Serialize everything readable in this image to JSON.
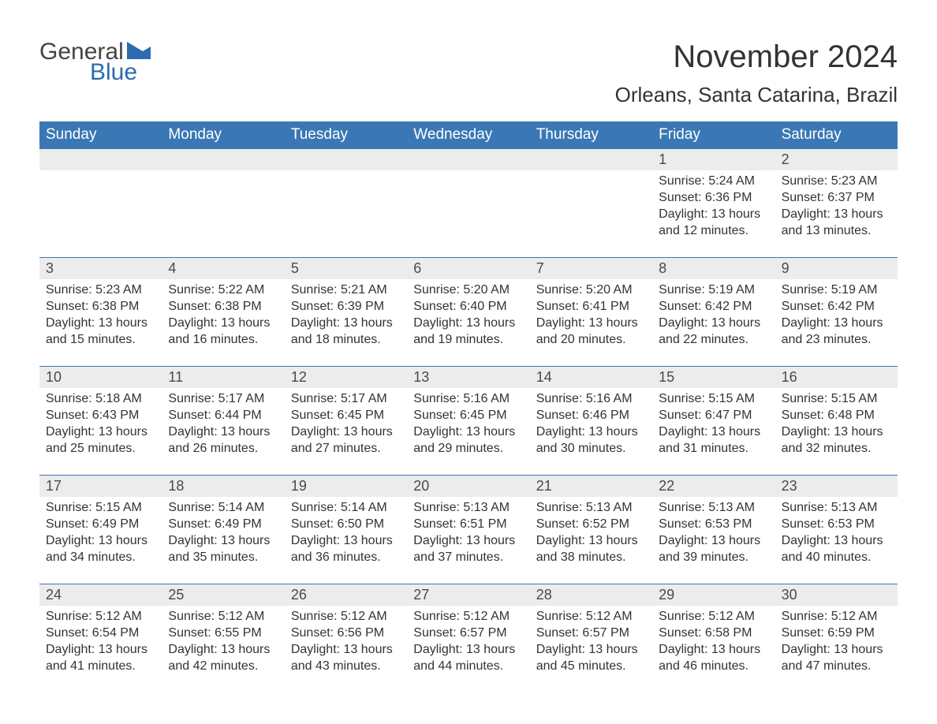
{
  "brand": {
    "word1": "General",
    "word2": "Blue",
    "color_general": "#444444",
    "color_blue": "#2b6cb0",
    "flag_color": "#2b6cb0"
  },
  "title": "November 2024",
  "location": "Orleans, Santa Catarina, Brazil",
  "header_bg": "#3a78b5",
  "header_text_color": "#ffffff",
  "row_border_color": "#3a78b5",
  "daynum_band_bg": "#ececec",
  "body_text_color": "#333333",
  "title_fontsize": 40,
  "location_fontsize": 26,
  "weekday_fontsize": 19,
  "daynum_fontsize": 18,
  "body_fontsize": 16,
  "weekdays": [
    "Sunday",
    "Monday",
    "Tuesday",
    "Wednesday",
    "Thursday",
    "Friday",
    "Saturday"
  ],
  "weeks": [
    [
      null,
      null,
      null,
      null,
      null,
      {
        "n": "1",
        "sunrise": "Sunrise: 5:24 AM",
        "sunset": "Sunset: 6:36 PM",
        "daylight": "Daylight: 13 hours and 12 minutes."
      },
      {
        "n": "2",
        "sunrise": "Sunrise: 5:23 AM",
        "sunset": "Sunset: 6:37 PM",
        "daylight": "Daylight: 13 hours and 13 minutes."
      }
    ],
    [
      {
        "n": "3",
        "sunrise": "Sunrise: 5:23 AM",
        "sunset": "Sunset: 6:38 PM",
        "daylight": "Daylight: 13 hours and 15 minutes."
      },
      {
        "n": "4",
        "sunrise": "Sunrise: 5:22 AM",
        "sunset": "Sunset: 6:38 PM",
        "daylight": "Daylight: 13 hours and 16 minutes."
      },
      {
        "n": "5",
        "sunrise": "Sunrise: 5:21 AM",
        "sunset": "Sunset: 6:39 PM",
        "daylight": "Daylight: 13 hours and 18 minutes."
      },
      {
        "n": "6",
        "sunrise": "Sunrise: 5:20 AM",
        "sunset": "Sunset: 6:40 PM",
        "daylight": "Daylight: 13 hours and 19 minutes."
      },
      {
        "n": "7",
        "sunrise": "Sunrise: 5:20 AM",
        "sunset": "Sunset: 6:41 PM",
        "daylight": "Daylight: 13 hours and 20 minutes."
      },
      {
        "n": "8",
        "sunrise": "Sunrise: 5:19 AM",
        "sunset": "Sunset: 6:42 PM",
        "daylight": "Daylight: 13 hours and 22 minutes."
      },
      {
        "n": "9",
        "sunrise": "Sunrise: 5:19 AM",
        "sunset": "Sunset: 6:42 PM",
        "daylight": "Daylight: 13 hours and 23 minutes."
      }
    ],
    [
      {
        "n": "10",
        "sunrise": "Sunrise: 5:18 AM",
        "sunset": "Sunset: 6:43 PM",
        "daylight": "Daylight: 13 hours and 25 minutes."
      },
      {
        "n": "11",
        "sunrise": "Sunrise: 5:17 AM",
        "sunset": "Sunset: 6:44 PM",
        "daylight": "Daylight: 13 hours and 26 minutes."
      },
      {
        "n": "12",
        "sunrise": "Sunrise: 5:17 AM",
        "sunset": "Sunset: 6:45 PM",
        "daylight": "Daylight: 13 hours and 27 minutes."
      },
      {
        "n": "13",
        "sunrise": "Sunrise: 5:16 AM",
        "sunset": "Sunset: 6:45 PM",
        "daylight": "Daylight: 13 hours and 29 minutes."
      },
      {
        "n": "14",
        "sunrise": "Sunrise: 5:16 AM",
        "sunset": "Sunset: 6:46 PM",
        "daylight": "Daylight: 13 hours and 30 minutes."
      },
      {
        "n": "15",
        "sunrise": "Sunrise: 5:15 AM",
        "sunset": "Sunset: 6:47 PM",
        "daylight": "Daylight: 13 hours and 31 minutes."
      },
      {
        "n": "16",
        "sunrise": "Sunrise: 5:15 AM",
        "sunset": "Sunset: 6:48 PM",
        "daylight": "Daylight: 13 hours and 32 minutes."
      }
    ],
    [
      {
        "n": "17",
        "sunrise": "Sunrise: 5:15 AM",
        "sunset": "Sunset: 6:49 PM",
        "daylight": "Daylight: 13 hours and 34 minutes."
      },
      {
        "n": "18",
        "sunrise": "Sunrise: 5:14 AM",
        "sunset": "Sunset: 6:49 PM",
        "daylight": "Daylight: 13 hours and 35 minutes."
      },
      {
        "n": "19",
        "sunrise": "Sunrise: 5:14 AM",
        "sunset": "Sunset: 6:50 PM",
        "daylight": "Daylight: 13 hours and 36 minutes."
      },
      {
        "n": "20",
        "sunrise": "Sunrise: 5:13 AM",
        "sunset": "Sunset: 6:51 PM",
        "daylight": "Daylight: 13 hours and 37 minutes."
      },
      {
        "n": "21",
        "sunrise": "Sunrise: 5:13 AM",
        "sunset": "Sunset: 6:52 PM",
        "daylight": "Daylight: 13 hours and 38 minutes."
      },
      {
        "n": "22",
        "sunrise": "Sunrise: 5:13 AM",
        "sunset": "Sunset: 6:53 PM",
        "daylight": "Daylight: 13 hours and 39 minutes."
      },
      {
        "n": "23",
        "sunrise": "Sunrise: 5:13 AM",
        "sunset": "Sunset: 6:53 PM",
        "daylight": "Daylight: 13 hours and 40 minutes."
      }
    ],
    [
      {
        "n": "24",
        "sunrise": "Sunrise: 5:12 AM",
        "sunset": "Sunset: 6:54 PM",
        "daylight": "Daylight: 13 hours and 41 minutes."
      },
      {
        "n": "25",
        "sunrise": "Sunrise: 5:12 AM",
        "sunset": "Sunset: 6:55 PM",
        "daylight": "Daylight: 13 hours and 42 minutes."
      },
      {
        "n": "26",
        "sunrise": "Sunrise: 5:12 AM",
        "sunset": "Sunset: 6:56 PM",
        "daylight": "Daylight: 13 hours and 43 minutes."
      },
      {
        "n": "27",
        "sunrise": "Sunrise: 5:12 AM",
        "sunset": "Sunset: 6:57 PM",
        "daylight": "Daylight: 13 hours and 44 minutes."
      },
      {
        "n": "28",
        "sunrise": "Sunrise: 5:12 AM",
        "sunset": "Sunset: 6:57 PM",
        "daylight": "Daylight: 13 hours and 45 minutes."
      },
      {
        "n": "29",
        "sunrise": "Sunrise: 5:12 AM",
        "sunset": "Sunset: 6:58 PM",
        "daylight": "Daylight: 13 hours and 46 minutes."
      },
      {
        "n": "30",
        "sunrise": "Sunrise: 5:12 AM",
        "sunset": "Sunset: 6:59 PM",
        "daylight": "Daylight: 13 hours and 47 minutes."
      }
    ]
  ]
}
